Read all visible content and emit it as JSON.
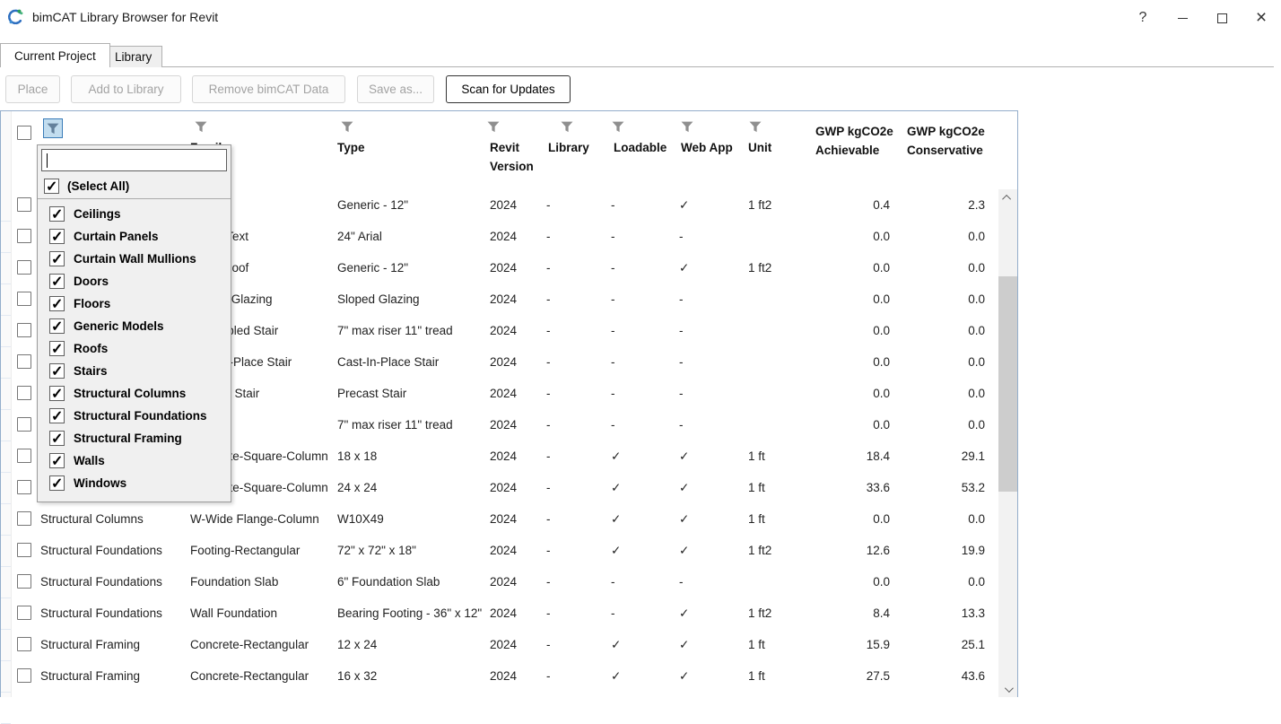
{
  "window": {
    "title": "bimCAT Library Browser for Revit",
    "controls": {
      "help": "?",
      "close": "×"
    }
  },
  "tabs": [
    {
      "label": "Current Project",
      "active": true
    },
    {
      "label": "Library",
      "active": false
    }
  ],
  "toolbar": {
    "buttons": [
      {
        "label": "Place",
        "enabled": false
      },
      {
        "label": "Add to Library",
        "enabled": false
      },
      {
        "label": "Remove bimCAT Data",
        "enabled": false
      },
      {
        "label": "Save as...",
        "enabled": false
      },
      {
        "label": "Scan for Updates",
        "enabled": true
      }
    ]
  },
  "table": {
    "columns": {
      "family": "Family",
      "type": "Type",
      "revit_version": "Revit Version",
      "library": "Library",
      "loadable": "Loadable",
      "web_app": "Web App",
      "unit": "Unit",
      "gwp_achievable": "GWP kgCO2e Achievable",
      "gwp_conservative": "GWP kgCO2e Conservative"
    },
    "filter_popup": {
      "search_value": "",
      "select_all_label": "(Select All)",
      "items": [
        {
          "label": "Ceilings",
          "checked": true
        },
        {
          "label": "Curtain Panels",
          "checked": true
        },
        {
          "label": "Curtain Wall Mullions",
          "checked": true
        },
        {
          "label": "Doors",
          "checked": true
        },
        {
          "label": "Floors",
          "checked": true
        },
        {
          "label": "Generic Models",
          "checked": true
        },
        {
          "label": "Roofs",
          "checked": true
        },
        {
          "label": "Stairs",
          "checked": true
        },
        {
          "label": "Structural Columns",
          "checked": true
        },
        {
          "label": "Structural Foundations",
          "checked": true
        },
        {
          "label": "Structural Framing",
          "checked": true
        },
        {
          "label": "Walls",
          "checked": true
        },
        {
          "label": "Windows",
          "checked": true
        }
      ],
      "select_all_checked": true
    },
    "rows": [
      {
        "category": "",
        "family": "",
        "type": "Generic - 12\"",
        "revit_version": "2024",
        "library": "-",
        "loadable": "-",
        "web_app": "✓",
        "unit": "1 ft2",
        "gwp_achievable": "0.4",
        "gwp_conservative": "2.3"
      },
      {
        "category": "",
        "family": "Model Text",
        "type": "24\" Arial",
        "revit_version": "2024",
        "library": "-",
        "loadable": "-",
        "web_app": "-",
        "unit": "",
        "gwp_achievable": "0.0",
        "gwp_conservative": "0.0"
      },
      {
        "category": "",
        "family": "Basic Roof",
        "type": "Generic - 12\"",
        "revit_version": "2024",
        "library": "-",
        "loadable": "-",
        "web_app": "✓",
        "unit": "1 ft2",
        "gwp_achievable": "0.0",
        "gwp_conservative": "0.0"
      },
      {
        "category": "",
        "family": "Sloped Glazing",
        "type": "Sloped Glazing",
        "revit_version": "2024",
        "library": "-",
        "loadable": "-",
        "web_app": "-",
        "unit": "",
        "gwp_achievable": "0.0",
        "gwp_conservative": "0.0"
      },
      {
        "category": "",
        "family": "Assembled Stair",
        "type": "7\" max riser 11\" tread",
        "revit_version": "2024",
        "library": "-",
        "loadable": "-",
        "web_app": "-",
        "unit": "",
        "gwp_achievable": "0.0",
        "gwp_conservative": "0.0"
      },
      {
        "category": "",
        "family": "Cast-In-Place Stair",
        "type": "Cast-In-Place Stair",
        "revit_version": "2024",
        "library": "-",
        "loadable": "-",
        "web_app": "-",
        "unit": "",
        "gwp_achievable": "0.0",
        "gwp_conservative": "0.0"
      },
      {
        "category": "",
        "family": "Precast Stair",
        "type": "Precast Stair",
        "revit_version": "2024",
        "library": "-",
        "loadable": "-",
        "web_app": "-",
        "unit": "",
        "gwp_achievable": "0.0",
        "gwp_conservative": "0.0"
      },
      {
        "category": "",
        "family": "",
        "type": "7\" max riser 11\" tread",
        "revit_version": "2024",
        "library": "-",
        "loadable": "-",
        "web_app": "-",
        "unit": "",
        "gwp_achievable": "0.0",
        "gwp_conservative": "0.0"
      },
      {
        "category": "",
        "family": "Concrete-Square-Column",
        "type": "18 x 18",
        "revit_version": "2024",
        "library": "-",
        "loadable": "✓",
        "web_app": "✓",
        "unit": "1 ft",
        "gwp_achievable": "18.4",
        "gwp_conservative": "29.1"
      },
      {
        "category": "",
        "family": "Concrete-Square-Column",
        "type": "24 x 24",
        "revit_version": "2024",
        "library": "-",
        "loadable": "✓",
        "web_app": "✓",
        "unit": "1 ft",
        "gwp_achievable": "33.6",
        "gwp_conservative": "53.2"
      },
      {
        "category": "Structural Columns",
        "family": "W-Wide Flange-Column",
        "type": "W10X49",
        "revit_version": "2024",
        "library": "-",
        "loadable": "✓",
        "web_app": "✓",
        "unit": "1 ft",
        "gwp_achievable": "0.0",
        "gwp_conservative": "0.0"
      },
      {
        "category": "Structural Foundations",
        "family": "Footing-Rectangular",
        "type": "72\" x 72\" x 18\"",
        "revit_version": "2024",
        "library": "-",
        "loadable": "✓",
        "web_app": "✓",
        "unit": "1 ft2",
        "gwp_achievable": "12.6",
        "gwp_conservative": "19.9"
      },
      {
        "category": "Structural Foundations",
        "family": "Foundation Slab",
        "type": "6\" Foundation Slab",
        "revit_version": "2024",
        "library": "-",
        "loadable": "-",
        "web_app": "-",
        "unit": "",
        "gwp_achievable": "0.0",
        "gwp_conservative": "0.0"
      },
      {
        "category": "Structural Foundations",
        "family": "Wall Foundation",
        "type": "Bearing Footing - 36\" x 12\"",
        "revit_version": "2024",
        "library": "-",
        "loadable": "-",
        "web_app": "✓",
        "unit": "1 ft2",
        "gwp_achievable": "8.4",
        "gwp_conservative": "13.3"
      },
      {
        "category": "Structural Framing",
        "family": "Concrete-Rectangular",
        "type": "12 x 24",
        "revit_version": "2024",
        "library": "-",
        "loadable": "✓",
        "web_app": "✓",
        "unit": "1 ft",
        "gwp_achievable": "15.9",
        "gwp_conservative": "25.1"
      },
      {
        "category": "Structural Framing",
        "family": "Concrete-Rectangular",
        "type": "16 x 32",
        "revit_version": "2024",
        "library": "-",
        "loadable": "✓",
        "web_app": "✓",
        "unit": "1 ft",
        "gwp_achievable": "27.5",
        "gwp_conservative": "43.6"
      }
    ]
  }
}
